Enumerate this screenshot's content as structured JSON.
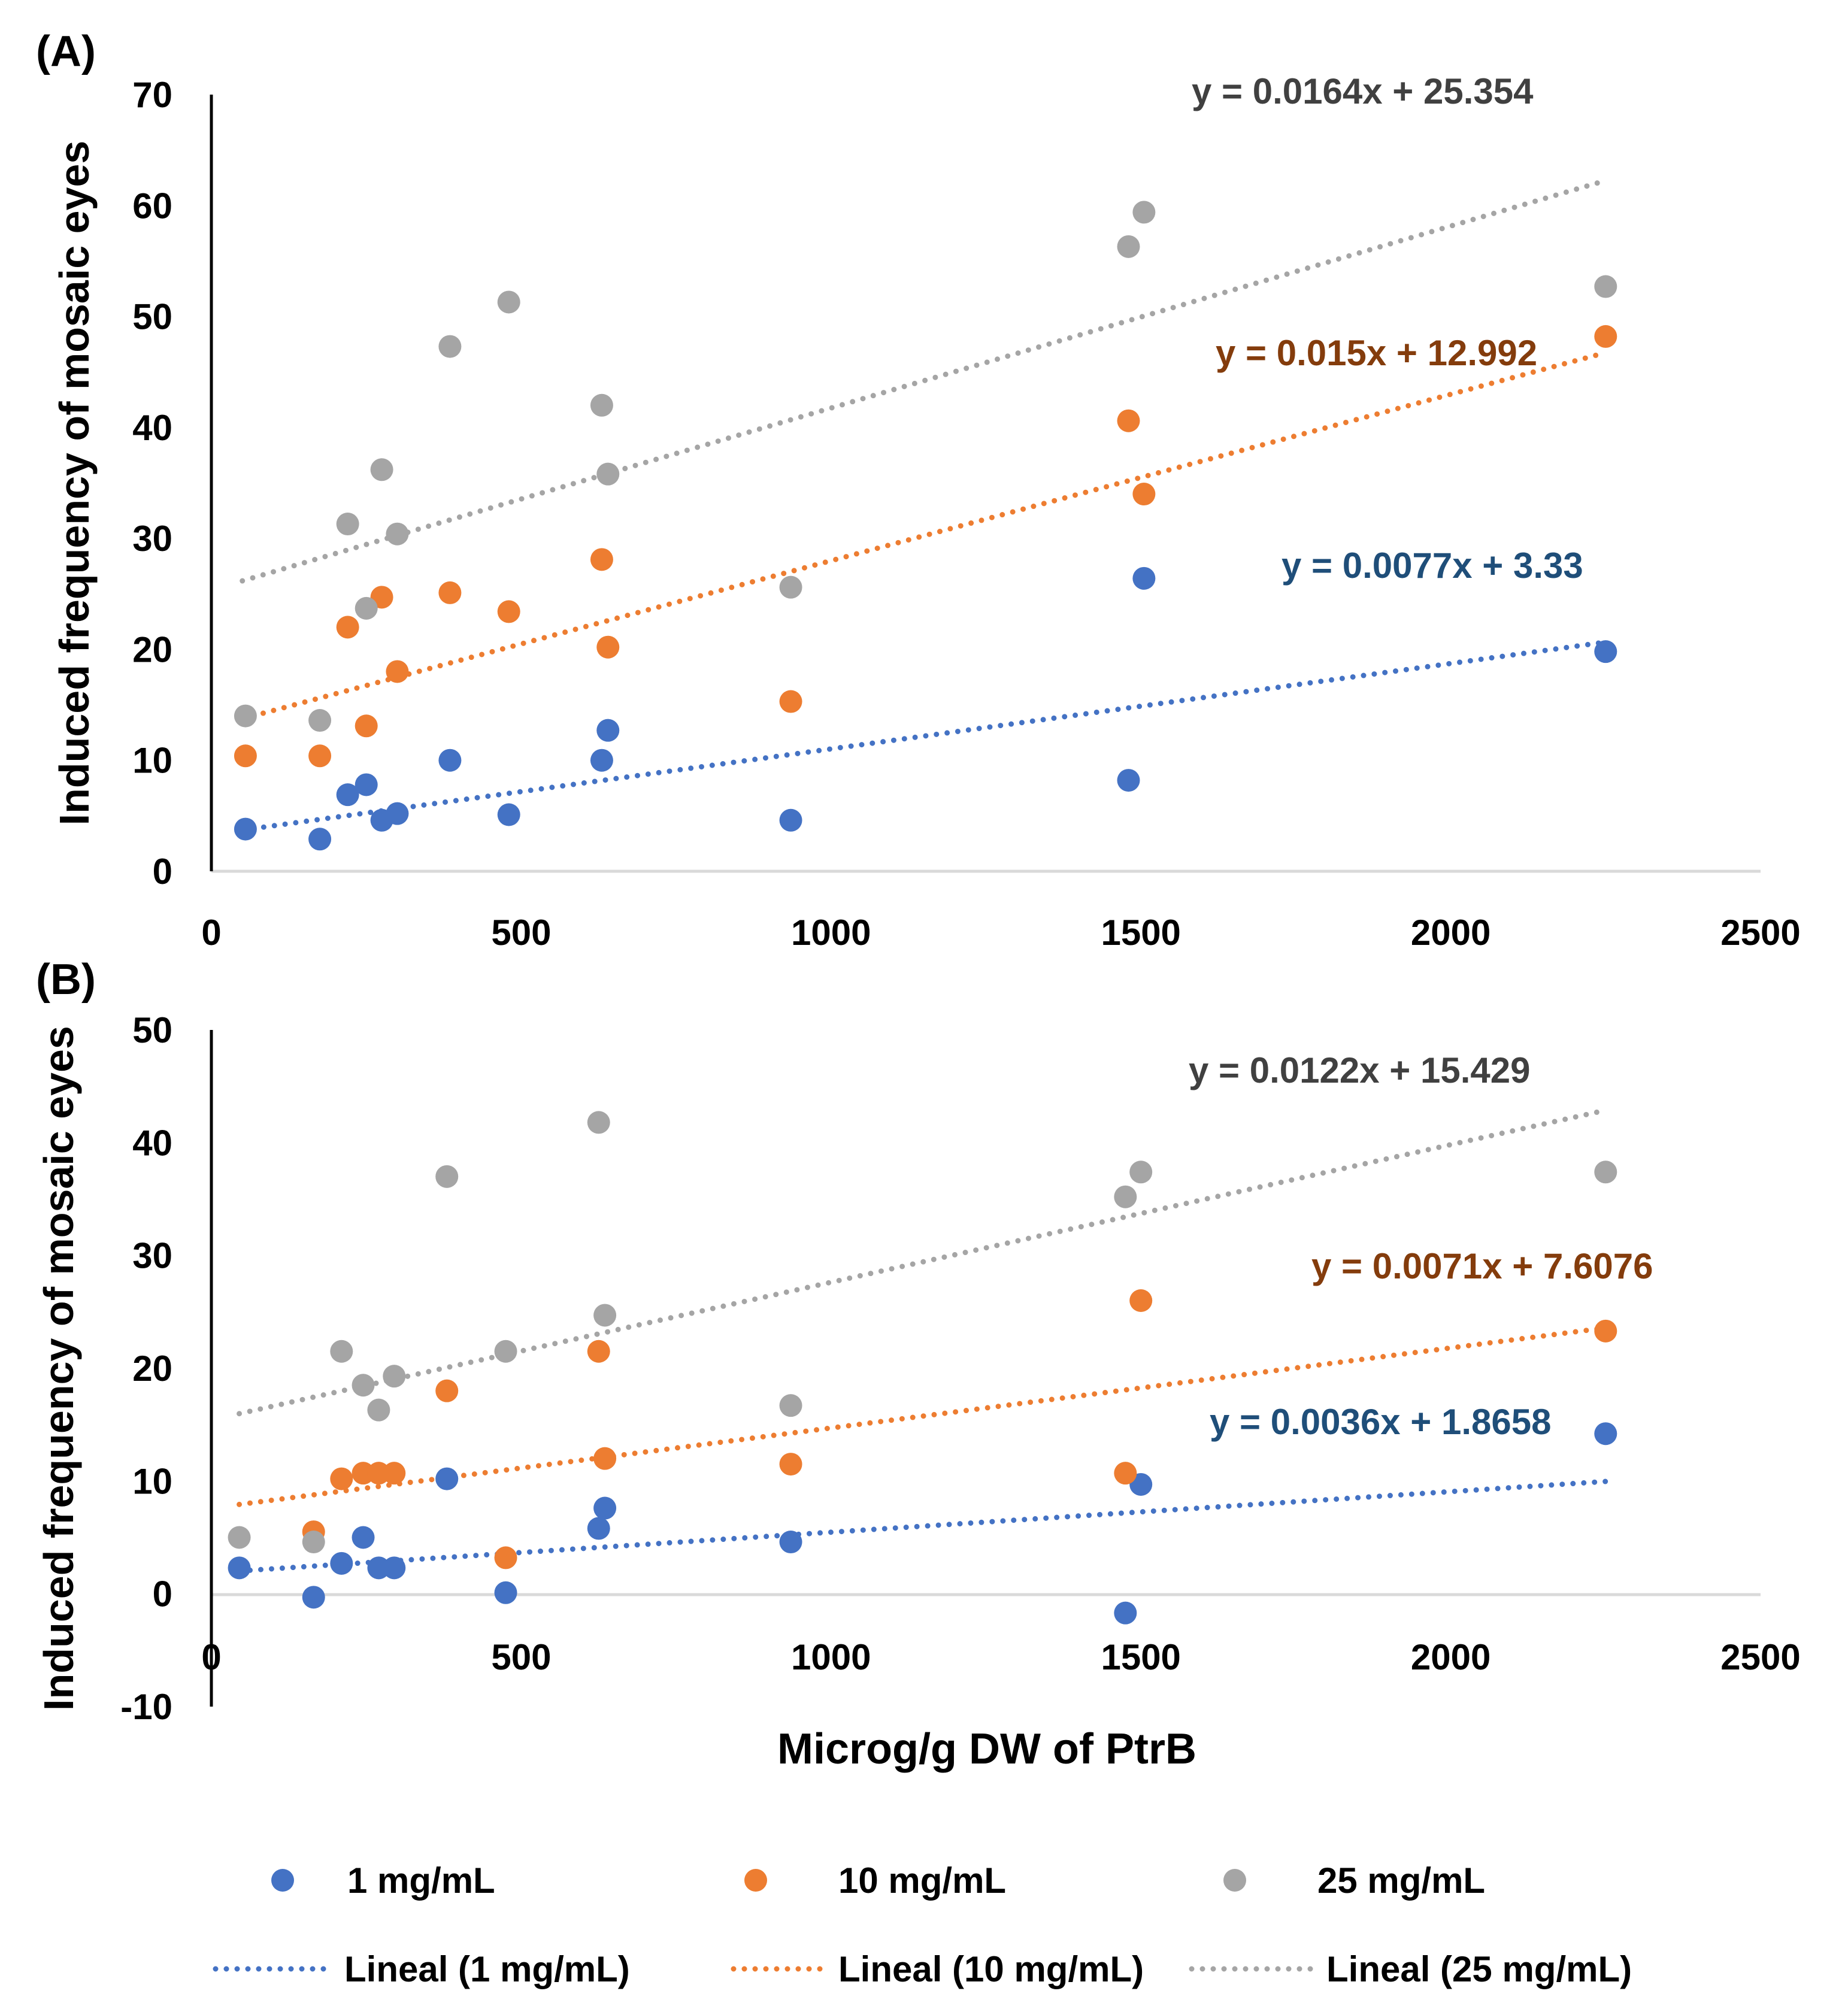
{
  "chart_data": [
    {
      "type": "scatter",
      "panel_label": "(A)",
      "ylabel": "Induced frequency of mosaic eyes",
      "xlabel": "",
      "xlim": [
        0,
        2500
      ],
      "ylim": [
        0,
        70
      ],
      "x_ticks": [
        "0",
        "500",
        "1000",
        "1500",
        "2000",
        "2500"
      ],
      "y_ticks": [
        "0",
        "10",
        "20",
        "30",
        "40",
        "50",
        "60",
        "70"
      ],
      "series": [
        {
          "name": "1 mg/mL",
          "color": "#4472C4",
          "points": [
            [
              55,
              3.8
            ],
            [
              175,
              2.9
            ],
            [
              220,
              6.9
            ],
            [
              250,
              7.8
            ],
            [
              275,
              4.6
            ],
            [
              300,
              5.2
            ],
            [
              385,
              10.0
            ],
            [
              480,
              5.1
            ],
            [
              630,
              10.0
            ],
            [
              640,
              12.7
            ],
            [
              935,
              4.6
            ],
            [
              1480,
              8.2
            ],
            [
              1505,
              26.4
            ],
            [
              2250,
              19.8
            ]
          ],
          "trend": {
            "slope": 0.0077,
            "intercept": 3.33,
            "x_range": [
              50,
              2250
            ]
          },
          "equation": "y = 0.0077x + 3.33"
        },
        {
          "name": "10 mg/mL",
          "color": "#ED7D31",
          "points": [
            [
              55,
              10.4
            ],
            [
              175,
              10.4
            ],
            [
              220,
              22.0
            ],
            [
              250,
              13.1
            ],
            [
              275,
              24.7
            ],
            [
              300,
              18.0
            ],
            [
              385,
              25.1
            ],
            [
              480,
              23.4
            ],
            [
              630,
              28.1
            ],
            [
              640,
              20.2
            ],
            [
              935,
              15.3
            ],
            [
              1480,
              40.6
            ],
            [
              1505,
              34.0
            ],
            [
              2250,
              48.2
            ]
          ],
          "trend": {
            "slope": 0.015,
            "intercept": 12.992,
            "x_range": [
              50,
              2250
            ]
          },
          "equation": "y = 0.015x + 12.992"
        },
        {
          "name": "25 mg/mL",
          "color": "#A5A5A5",
          "points": [
            [
              55,
              14.0
            ],
            [
              175,
              13.6
            ],
            [
              220,
              31.3
            ],
            [
              250,
              23.7
            ],
            [
              275,
              36.2
            ],
            [
              300,
              30.4
            ],
            [
              385,
              47.3
            ],
            [
              480,
              51.3
            ],
            [
              630,
              42.0
            ],
            [
              640,
              35.8
            ],
            [
              935,
              25.6
            ],
            [
              1480,
              56.3
            ],
            [
              1505,
              59.4
            ],
            [
              2250,
              52.7
            ]
          ],
          "trend": {
            "slope": 0.0164,
            "intercept": 25.354,
            "x_range": [
              50,
              2250
            ]
          },
          "equation": "y = 0.0164x + 25.354"
        }
      ]
    },
    {
      "type": "scatter",
      "panel_label": "(B)",
      "ylabel": "Induced frequency of mosaic eyes",
      "xlabel": "Microg/g DW of PtrB",
      "xlim": [
        0,
        2500
      ],
      "ylim": [
        -10,
        50
      ],
      "x_ticks": [
        "0",
        "500",
        "1000",
        "1500",
        "2000",
        "2500"
      ],
      "y_ticks": [
        "-10",
        "0",
        "10",
        "20",
        "30",
        "40",
        "50"
      ],
      "series": [
        {
          "name": "1 mg/mL",
          "color": "#4472C4",
          "points": [
            [
              45,
              2.3
            ],
            [
              165,
              -0.3
            ],
            [
              210,
              2.7
            ],
            [
              245,
              5.0
            ],
            [
              270,
              2.3
            ],
            [
              295,
              2.3
            ],
            [
              380,
              10.2
            ],
            [
              475,
              0.1
            ],
            [
              625,
              5.8
            ],
            [
              635,
              7.6
            ],
            [
              935,
              4.6
            ],
            [
              1475,
              -1.7
            ],
            [
              1500,
              9.7
            ],
            [
              2250,
              14.2
            ]
          ],
          "trend": {
            "slope": 0.0036,
            "intercept": 1.8658,
            "x_range": [
              45,
              2250
            ]
          },
          "equation": "y = 0.0036x + 1.8658"
        },
        {
          "name": "10 mg/mL",
          "color": "#ED7D31",
          "points": [
            [
              165,
              5.5
            ],
            [
              210,
              10.2
            ],
            [
              245,
              10.7
            ],
            [
              270,
              10.7
            ],
            [
              295,
              10.7
            ],
            [
              380,
              18.0
            ],
            [
              475,
              3.2
            ],
            [
              625,
              21.5
            ],
            [
              635,
              12.0
            ],
            [
              935,
              11.5
            ],
            [
              1475,
              10.7
            ],
            [
              1500,
              26.0
            ],
            [
              2250,
              23.3
            ]
          ],
          "trend": {
            "slope": 0.0071,
            "intercept": 7.6076,
            "x_range": [
              45,
              2250
            ]
          },
          "equation": "y = 0.0071x + 7.6076"
        },
        {
          "name": "25 mg/mL",
          "color": "#A5A5A5",
          "points": [
            [
              45,
              5.0
            ],
            [
              165,
              4.6
            ],
            [
              210,
              21.5
            ],
            [
              245,
              18.5
            ],
            [
              270,
              16.3
            ],
            [
              295,
              19.3
            ],
            [
              380,
              37.0
            ],
            [
              475,
              21.5
            ],
            [
              625,
              41.8
            ],
            [
              635,
              24.7
            ],
            [
              935,
              16.7
            ],
            [
              1475,
              35.2
            ],
            [
              1500,
              37.4
            ],
            [
              2250,
              37.4
            ]
          ],
          "trend": {
            "slope": 0.0122,
            "intercept": 15.429,
            "x_range": [
              45,
              2250
            ]
          },
          "equation": "y = 0.0122x + 15.429"
        }
      ]
    }
  ],
  "legend": {
    "markers": [
      "1 mg/mL",
      "10 mg/mL",
      "25 mg/mL"
    ],
    "trendlines": [
      "Lineal (1 mg/mL)",
      "Lineal (10 mg/mL)",
      "Lineal (25 mg/mL)"
    ]
  },
  "colors": {
    "blue": "#4472C4",
    "orange": "#ED7D31",
    "gray": "#A5A5A5",
    "eq_blue": "#1F4E79",
    "eq_orange": "#843C0C",
    "eq_gray": "#404040"
  }
}
